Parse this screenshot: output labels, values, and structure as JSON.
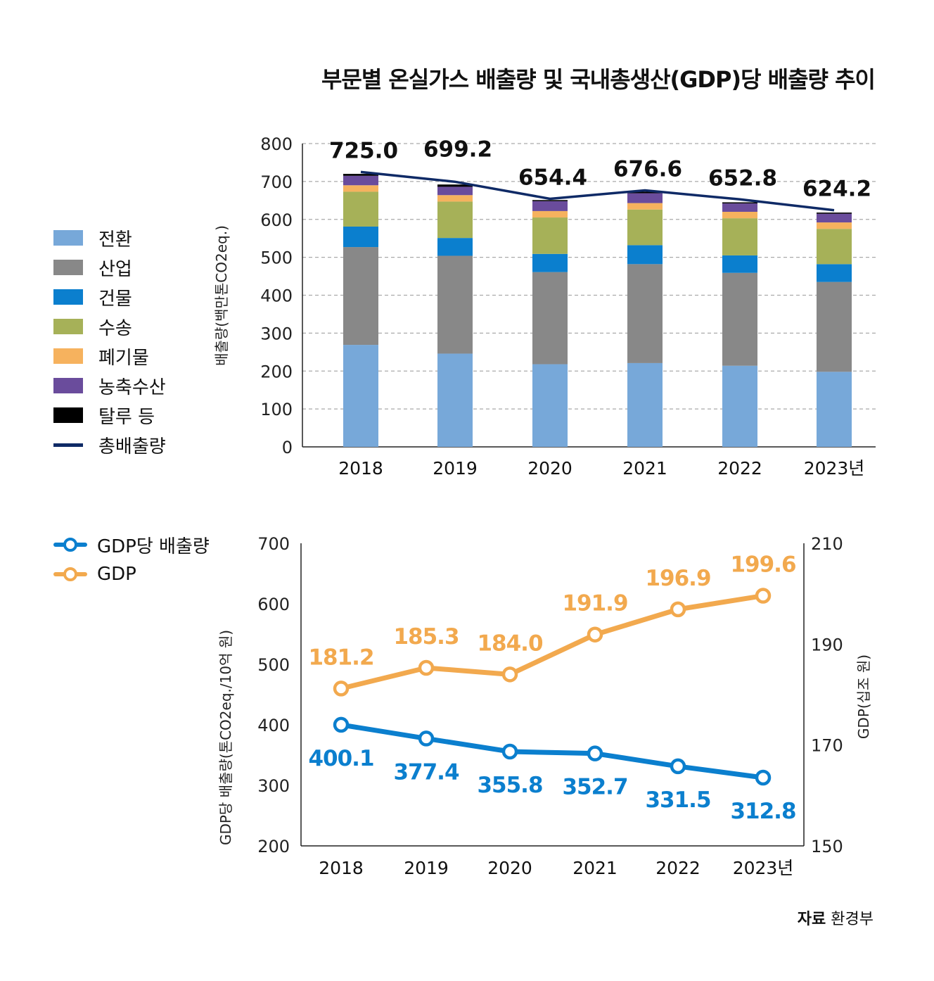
{
  "title": "부문별 온실가스 배출량 및 국내총생산(GDP)당 배출량 추이",
  "source": {
    "label": "자료",
    "value": "환경부"
  },
  "chart_data": [
    {
      "type": "bar",
      "stacked": true,
      "categories": [
        "2018",
        "2019",
        "2020",
        "2021",
        "2022",
        "2023년"
      ],
      "ylabel": "배출량(백만톤CO2eq.)",
      "ylim": [
        0,
        800
      ],
      "yticks": [
        0,
        100,
        200,
        300,
        400,
        500,
        600,
        700,
        800
      ],
      "grid": true,
      "series": [
        {
          "name": "전환",
          "color": "#77a8d9",
          "values": [
            269,
            246,
            218,
            221,
            214,
            198
          ]
        },
        {
          "name": "산업",
          "color": "#888888",
          "values": [
            258,
            258,
            243,
            261,
            245,
            237
          ]
        },
        {
          "name": "건물",
          "color": "#0b7fce",
          "values": [
            54,
            47,
            48,
            50,
            46,
            47
          ]
        },
        {
          "name": "수송",
          "color": "#a6b158",
          "values": [
            92,
            96,
            96,
            94,
            98,
            93
          ]
        },
        {
          "name": "폐기물",
          "color": "#f6b25e",
          "values": [
            17,
            17,
            17,
            17,
            17,
            17
          ]
        },
        {
          "name": "농축수산",
          "color": "#6a4c9c",
          "values": [
            25,
            22,
            26,
            26,
            22,
            23
          ]
        },
        {
          "name": "탈루 등",
          "color": "#000000",
          "values": [
            5,
            6,
            3,
            4,
            3,
            3
          ]
        }
      ],
      "line": {
        "name": "총배출량",
        "color": "#0f2a66",
        "values": [
          725.0,
          699.2,
          654.4,
          676.6,
          652.8,
          624.2
        ],
        "labels": [
          "725.0",
          "699.2",
          "654.4",
          "676.6",
          "652.8",
          "624.2"
        ]
      }
    },
    {
      "type": "line",
      "categories": [
        "2018",
        "2019",
        "2020",
        "2021",
        "2022",
        "2023년"
      ],
      "ylabel": "GDP당 배출량(톤CO2eq./10억 원)",
      "ylim": [
        200,
        700
      ],
      "yticks": [
        200,
        300,
        400,
        500,
        600,
        700
      ],
      "y2label": "GDP(십조 원)",
      "y2lim": [
        150,
        210
      ],
      "y2ticks": [
        150,
        170,
        190,
        210
      ],
      "series": [
        {
          "name": "GDP당 배출량",
          "axis": "left",
          "color": "#0b7fce",
          "values": [
            400.1,
            377.4,
            355.8,
            352.7,
            331.5,
            312.8
          ],
          "labels": [
            "400.1",
            "377.4",
            "355.8",
            "352.7",
            "331.5",
            "312.8"
          ]
        },
        {
          "name": "GDP",
          "axis": "right",
          "color": "#f2a94e",
          "values": [
            181.2,
            185.3,
            184.0,
            191.9,
            196.9,
            199.6
          ],
          "labels": [
            "181.2",
            "185.3",
            "184.0",
            "191.9",
            "196.9",
            "199.6"
          ]
        }
      ]
    }
  ]
}
